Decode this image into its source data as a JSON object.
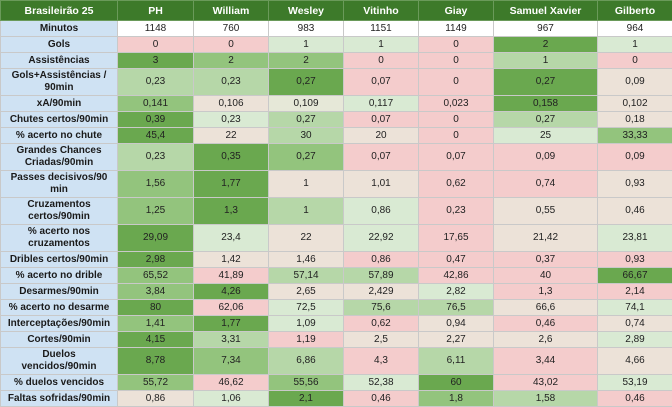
{
  "table": {
    "header_color": "#3d7a2a",
    "label_color": "#cfe2f3",
    "header": [
      "Brasileirão 25",
      "PH",
      "William",
      "Wesley",
      "Vitinho",
      "Giay",
      "Samuel Xavier",
      "Gilberto"
    ],
    "rows": [
      {
        "label": "Minutos",
        "cells": [
          "1148",
          "760",
          "983",
          "1151",
          "1149",
          "967",
          "964"
        ],
        "colors": [
          "#ffffff",
          "#ffffff",
          "#ffffff",
          "#ffffff",
          "#ffffff",
          "#ffffff",
          "#ffffff"
        ]
      },
      {
        "label": "Gols",
        "cells": [
          "0",
          "0",
          "1",
          "1",
          "0",
          "2",
          "1"
        ],
        "colors": [
          "#f4cccc",
          "#f4cccc",
          "#d9ead3",
          "#d9ead3",
          "#f4cccc",
          "#6aa84f",
          "#d9ead3"
        ]
      },
      {
        "label": "Assistências",
        "cells": [
          "3",
          "2",
          "2",
          "0",
          "0",
          "1",
          "0"
        ],
        "colors": [
          "#6aa84f",
          "#93c47d",
          "#93c47d",
          "#f4cccc",
          "#f4cccc",
          "#b6d7a8",
          "#f4cccc"
        ]
      },
      {
        "label": "Gols+Assistências / 90min",
        "cells": [
          "0,23",
          "0,23",
          "0,27",
          "0,07",
          "0",
          "0,27",
          "0,09"
        ],
        "colors": [
          "#b6d7a8",
          "#b6d7a8",
          "#6aa84f",
          "#f4cccc",
          "#f4cccc",
          "#6aa84f",
          "#ece2d8"
        ]
      },
      {
        "label": "xA/90min",
        "cells": [
          "0,141",
          "0,106",
          "0,109",
          "0,117",
          "0,023",
          "0,158",
          "0,102"
        ],
        "colors": [
          "#93c47d",
          "#ece2d8",
          "#e6e8d8",
          "#d9ead3",
          "#f4cccc",
          "#6aa84f",
          "#ece2d8"
        ]
      },
      {
        "label": "Chutes certos/90min",
        "cells": [
          "0,39",
          "0,23",
          "0,27",
          "0,07",
          "0",
          "0,27",
          "0,18"
        ],
        "colors": [
          "#6aa84f",
          "#d9ead3",
          "#b6d7a8",
          "#f4cccc",
          "#f4cccc",
          "#b6d7a8",
          "#ece2d8"
        ]
      },
      {
        "label": "% acerto no chute",
        "cells": [
          "45,4",
          "22",
          "30",
          "20",
          "0",
          "25",
          "33,33"
        ],
        "colors": [
          "#6aa84f",
          "#ece2d8",
          "#b6d7a8",
          "#ece2d8",
          "#f4cccc",
          "#d9ead3",
          "#93c47d"
        ]
      },
      {
        "label": "Grandes Chances Criadas/90min",
        "cells": [
          "0,23",
          "0,35",
          "0,27",
          "0,07",
          "0,07",
          "0,09",
          "0,09"
        ],
        "colors": [
          "#b6d7a8",
          "#6aa84f",
          "#93c47d",
          "#f4cccc",
          "#f4cccc",
          "#f4cccc",
          "#f4cccc"
        ]
      },
      {
        "label": "Passes decisivos/90 min",
        "cells": [
          "1,56",
          "1,77",
          "1",
          "1,01",
          "0,62",
          "0,74",
          "0,93"
        ],
        "colors": [
          "#93c47d",
          "#6aa84f",
          "#ece2d8",
          "#ece2d8",
          "#f4cccc",
          "#f4cccc",
          "#ece2d8"
        ]
      },
      {
        "label": "Cruzamentos certos/90min",
        "cells": [
          "1,25",
          "1,3",
          "1",
          "0,86",
          "0,23",
          "0,55",
          "0,46"
        ],
        "colors": [
          "#93c47d",
          "#6aa84f",
          "#b6d7a8",
          "#d9ead3",
          "#f4cccc",
          "#ece2d8",
          "#ece2d8"
        ]
      },
      {
        "label": "% acerto nos cruzamentos",
        "cells": [
          "29,09",
          "23,4",
          "22",
          "22,92",
          "17,65",
          "21,42",
          "23,81"
        ],
        "colors": [
          "#6aa84f",
          "#d9ead3",
          "#ece2d8",
          "#d9ead3",
          "#f4cccc",
          "#ece2d8",
          "#d9ead3"
        ]
      },
      {
        "label": "Dribles certos/90min",
        "cells": [
          "2,98",
          "1,42",
          "1,46",
          "0,86",
          "0,47",
          "0,37",
          "0,93"
        ],
        "colors": [
          "#6aa84f",
          "#ece2d8",
          "#ece2d8",
          "#f4cccc",
          "#f4cccc",
          "#f4cccc",
          "#f4cccc"
        ]
      },
      {
        "label": "% acerto no drible",
        "cells": [
          "65,52",
          "41,89",
          "57,14",
          "57,89",
          "42,86",
          "40",
          "66,67"
        ],
        "colors": [
          "#93c47d",
          "#f4cccc",
          "#b6d7a8",
          "#b6d7a8",
          "#f4cccc",
          "#f4cccc",
          "#6aa84f"
        ]
      },
      {
        "label": "Desarmes/90min",
        "cells": [
          "3,84",
          "4,26",
          "2,65",
          "2,429",
          "2,82",
          "1,3",
          "2,14"
        ],
        "colors": [
          "#93c47d",
          "#6aa84f",
          "#ece2d8",
          "#ece2d8",
          "#d9ead3",
          "#f4cccc",
          "#f4cccc"
        ]
      },
      {
        "label": "% acerto no desarme",
        "cells": [
          "80",
          "62,06",
          "72,5",
          "75,6",
          "76,5",
          "66,6",
          "74,1"
        ],
        "colors": [
          "#6aa84f",
          "#f4cccc",
          "#d9ead3",
          "#b6d7a8",
          "#b6d7a8",
          "#ece2d8",
          "#d9ead3"
        ]
      },
      {
        "label": "Interceptações/90min",
        "cells": [
          "1,41",
          "1,77",
          "1,09",
          "0,62",
          "0,94",
          "0,46",
          "0,74"
        ],
        "colors": [
          "#93c47d",
          "#6aa84f",
          "#d9ead3",
          "#f4cccc",
          "#ece2d8",
          "#f4cccc",
          "#ece2d8"
        ]
      },
      {
        "label": "Cortes/90min",
        "cells": [
          "4,15",
          "3,31",
          "1,19",
          "2,5",
          "2,27",
          "2,6",
          "2,89"
        ],
        "colors": [
          "#6aa84f",
          "#b6d7a8",
          "#f4cccc",
          "#ece2d8",
          "#ece2d8",
          "#ece2d8",
          "#d9ead3"
        ]
      },
      {
        "label": "Duelos vencidos/90min",
        "cells": [
          "8,78",
          "7,34",
          "6,86",
          "4,3",
          "6,11",
          "3,44",
          "4,66"
        ],
        "colors": [
          "#6aa84f",
          "#93c47d",
          "#b6d7a8",
          "#f4cccc",
          "#b6d7a8",
          "#f4cccc",
          "#ece2d8"
        ]
      },
      {
        "label": "% duelos vencidos",
        "cells": [
          "55,72",
          "46,62",
          "55,56",
          "52,38",
          "60",
          "43,02",
          "53,19"
        ],
        "colors": [
          "#93c47d",
          "#f4cccc",
          "#93c47d",
          "#d9ead3",
          "#6aa84f",
          "#f4cccc",
          "#d9ead3"
        ]
      },
      {
        "label": "Faltas sofridas/90min",
        "cells": [
          "0,86",
          "1,06",
          "2,1",
          "0,46",
          "1,8",
          "1,58",
          "0,46"
        ],
        "colors": [
          "#ece2d8",
          "#d9ead3",
          "#6aa84f",
          "#f4cccc",
          "#93c47d",
          "#b6d7a8",
          "#f4cccc"
        ]
      }
    ]
  }
}
